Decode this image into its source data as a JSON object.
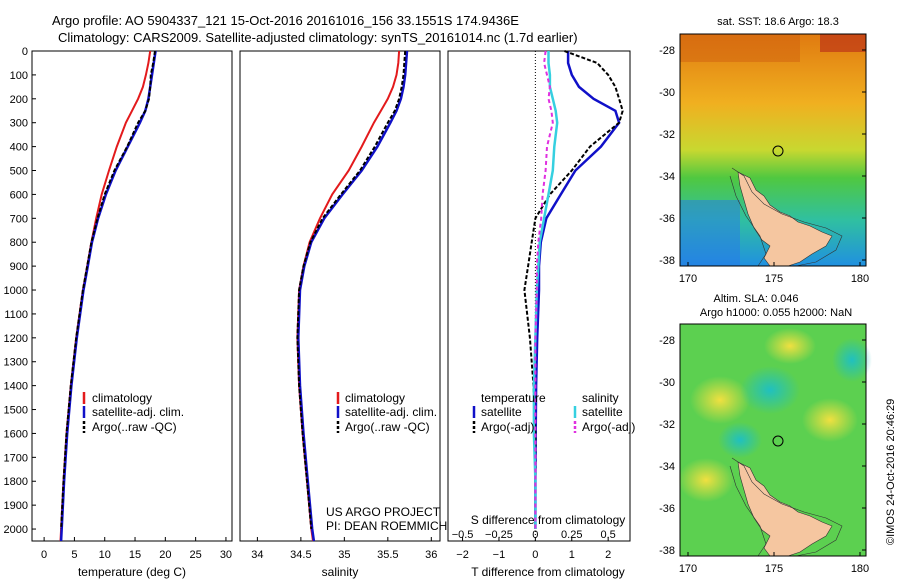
{
  "header": {
    "line1": "Argo profile: AO 5904337_121 15-Oct-2016 20161016_156 33.1551S 174.9436E",
    "line2": "Climatology: CARS2009. Satellite-adjusted climatology: synTS_20161014.nc (1.7d earlier)"
  },
  "credits": {
    "project": "US ARGO PROJECT",
    "pi": "PI: DEAN ROEMMICH",
    "stamp": "©IMOS 24-Oct-2016 20:46:29"
  },
  "colors": {
    "climatology": "#e31a1c",
    "satellite": "#1010c8",
    "argo": "#000000",
    "salinity_satellite": "#35d0e0",
    "salinity_argo": "#e030e0",
    "land": "#f5c6a0"
  },
  "legend_profiles": {
    "items": [
      "climatology",
      "satellite-adj. clim.",
      "Argo(..raw -QC)"
    ]
  },
  "legend_diff": {
    "left_title": "temperature",
    "right_title": "salinity",
    "left_items": [
      "satellite",
      "Argo(-adj)"
    ],
    "right_items": [
      "satellite",
      "Argo(-adj)"
    ]
  },
  "maps": {
    "sst_title": "sat. SST: 18.6 Argo: 18.3",
    "sla_title1": "Altim. SLA: 0.046",
    "sla_title2": "Argo h1000: 0.055 h2000: NaN",
    "xticks": [
      "170",
      "175",
      "180"
    ],
    "yticks": [
      "-28",
      "-30",
      "-32",
      "-34",
      "-36",
      "-38"
    ]
  },
  "chart_data": [
    {
      "type": "line",
      "title": "",
      "xlabel": "temperature (deg C)",
      "ylabel": "",
      "xlim": [
        -2,
        31
      ],
      "ylim": [
        2050,
        0
      ],
      "xticks": [
        0,
        5,
        10,
        15,
        20,
        25,
        30
      ],
      "yticks": [
        0,
        100,
        200,
        300,
        400,
        500,
        600,
        700,
        800,
        900,
        1000,
        1100,
        1200,
        1300,
        1400,
        1500,
        1600,
        1700,
        1800,
        1900,
        2000
      ],
      "depth": [
        0,
        50,
        100,
        150,
        200,
        250,
        300,
        400,
        500,
        600,
        700,
        800,
        900,
        1000,
        1200,
        1400,
        1600,
        1800,
        2000,
        2050
      ],
      "series": [
        {
          "name": "climatology",
          "values": [
            17.5,
            17.2,
            16.8,
            16.3,
            15.5,
            14.5,
            13.5,
            12.0,
            10.7,
            9.5,
            8.6,
            7.8,
            7.1,
            6.4,
            5.3,
            4.4,
            3.7,
            3.2,
            2.8,
            2.7
          ]
        },
        {
          "name": "satellite-adj. clim.",
          "values": [
            18.4,
            18.1,
            17.8,
            17.5,
            17.2,
            16.7,
            15.8,
            13.8,
            11.8,
            10.2,
            8.9,
            7.9,
            7.2,
            6.5,
            5.4,
            4.5,
            3.8,
            3.3,
            2.9,
            2.8
          ]
        },
        {
          "name": "Argo(..raw -QC)",
          "values": [
            18.3,
            18.0,
            17.6,
            17.5,
            17.3,
            16.7,
            15.5,
            13.7,
            11.6,
            10.0,
            8.8,
            7.8,
            7.1,
            6.4,
            5.3,
            4.4,
            3.7,
            3.2,
            2.8,
            null
          ]
        }
      ]
    },
    {
      "type": "line",
      "title": "",
      "xlabel": "salinity",
      "ylabel": "",
      "xlim": [
        33.8,
        36.1
      ],
      "ylim": [
        2050,
        0
      ],
      "xticks": [
        34,
        34.5,
        35,
        35.5,
        36
      ],
      "depth": [
        0,
        50,
        100,
        150,
        200,
        250,
        300,
        400,
        500,
        600,
        700,
        800,
        900,
        1000,
        1200,
        1400,
        1600,
        1800,
        2000,
        2050
      ],
      "series": [
        {
          "name": "climatology",
          "values": [
            35.63,
            35.62,
            35.6,
            35.56,
            35.5,
            35.42,
            35.34,
            35.2,
            35.05,
            34.86,
            34.72,
            34.6,
            34.53,
            34.48,
            34.46,
            34.48,
            34.52,
            34.57,
            34.62,
            34.64
          ]
        },
        {
          "name": "satellite-adj. clim.",
          "values": [
            35.72,
            35.71,
            35.7,
            35.68,
            35.65,
            35.6,
            35.53,
            35.38,
            35.2,
            34.98,
            34.77,
            34.62,
            34.54,
            34.49,
            34.47,
            34.49,
            34.53,
            34.58,
            34.63,
            34.65
          ]
        },
        {
          "name": "Argo(..raw -QC)",
          "values": [
            35.7,
            35.69,
            35.68,
            35.66,
            35.63,
            35.58,
            35.5,
            35.35,
            35.18,
            34.96,
            34.75,
            34.61,
            34.53,
            34.48,
            34.46,
            34.48,
            34.52,
            34.57,
            34.62,
            null
          ]
        }
      ]
    },
    {
      "type": "line",
      "title": "",
      "xlabel": "T difference from climatology",
      "x2label": "S difference from climatology",
      "ylabel": "",
      "xlim": [
        -2.4,
        2.6
      ],
      "x2lim": [
        -0.6,
        0.65
      ],
      "ylim": [
        2050,
        0
      ],
      "xticks": [
        -2,
        -1,
        0,
        1,
        2
      ],
      "xtick_labels": [
        "−2",
        "−1",
        "0",
        "1",
        "2"
      ],
      "x2ticks": [
        -0.5,
        -0.25,
        0,
        0.25,
        0.5
      ],
      "x2tick_labels": [
        "−0.5",
        "−0.25",
        "0",
        "0.25",
        "0.5"
      ],
      "depth": [
        0,
        50,
        100,
        150,
        200,
        250,
        300,
        400,
        500,
        600,
        700,
        800,
        900,
        1000,
        1200,
        1400,
        1600,
        1800,
        2000
      ],
      "series": [
        {
          "name": "temperature satellite",
          "axis": "T",
          "values": [
            0.9,
            0.9,
            1.0,
            1.2,
            1.6,
            2.2,
            2.3,
            1.8,
            1.1,
            0.7,
            0.3,
            0.15,
            0.1,
            0.1,
            0.05,
            0.02,
            0.01,
            0.0,
            0.0
          ]
        },
        {
          "name": "temperature Argo(-adj)",
          "axis": "T",
          "values": [
            0.8,
            1.7,
            2.0,
            2.2,
            2.3,
            2.4,
            2.3,
            1.5,
            1.0,
            0.4,
            0.0,
            -0.1,
            -0.2,
            -0.3,
            -0.15,
            -0.05,
            0.0,
            0.0,
            0.0
          ]
        },
        {
          "name": "salinity satellite",
          "axis": "S",
          "values": [
            0.09,
            0.09,
            0.1,
            0.1,
            0.12,
            0.14,
            0.15,
            0.13,
            0.12,
            0.09,
            0.06,
            0.03,
            0.02,
            0.01,
            0.0,
            -0.01,
            -0.01,
            0.0,
            0.0
          ]
        },
        {
          "name": "salinity Argo(-adj)",
          "axis": "S",
          "values": [
            0.07,
            0.06,
            0.08,
            0.1,
            0.09,
            0.11,
            0.12,
            0.08,
            0.07,
            0.05,
            0.04,
            0.02,
            0.01,
            0.01,
            0.0,
            0.0,
            0.0,
            0.0,
            0.0
          ]
        }
      ]
    }
  ]
}
